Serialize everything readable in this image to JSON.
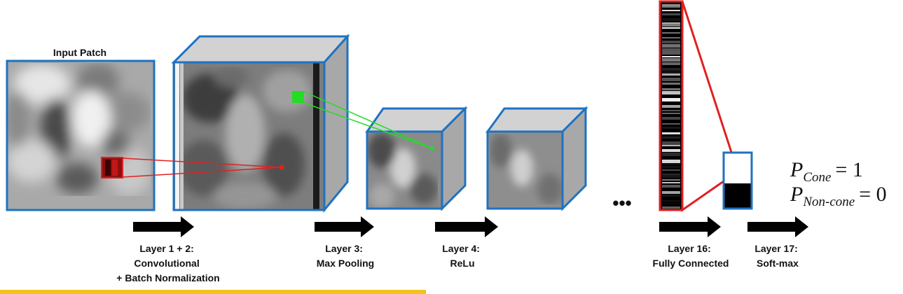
{
  "input_title": "Input Patch",
  "layers": [
    {
      "line1": "Layer 1 + 2:",
      "line2": "Convolutional",
      "line3": "+ Batch Normalization"
    },
    {
      "line1": "Layer 3:",
      "line2": "Max Pooling"
    },
    {
      "line1": "Layer 4:",
      "line2": "ReLu"
    },
    {
      "line1": "Layer 16:",
      "line2": "Fully Connected"
    },
    {
      "line1": "Layer 17:",
      "line2": "Soft-max"
    }
  ],
  "ellipsis": "•••",
  "outputs": [
    {
      "symbol": "P",
      "subscript": "Cone",
      "equals": "= 1"
    },
    {
      "symbol": "P",
      "subscript": "Non-cone",
      "equals": "= 0"
    }
  ],
  "colors": {
    "box_border": "#1f72c0",
    "cube_top": "#d2d2d2",
    "cube_side": "#a8a8a8",
    "red_connector": "#e02020",
    "green_connector": "#22dd22",
    "arrow": "#000000",
    "highlight_bar": "#f3c21c"
  }
}
